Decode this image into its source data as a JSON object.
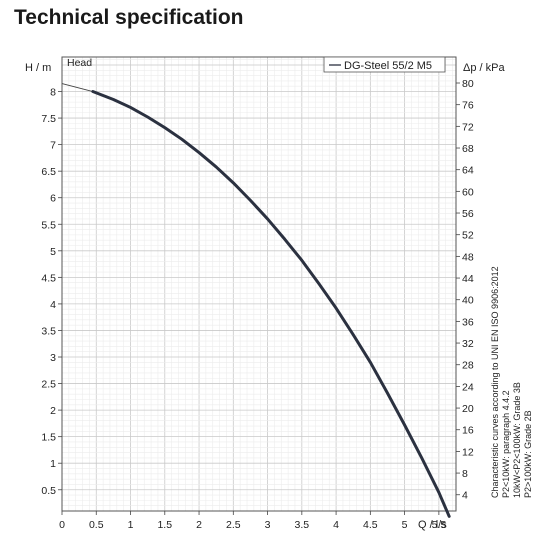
{
  "title": "Technical specification",
  "chart_data": {
    "type": "line",
    "ylabel_left": "H / m",
    "ylabel_right": "Δp / kPa",
    "xlabel": "Q / l/s",
    "head_label": "Head",
    "xlim": [
      0,
      5.75
    ],
    "ylim": [
      0.1,
      8.65
    ],
    "right_ylim": [
      1,
      84.8
    ],
    "grid": true,
    "legend_position": "top-right",
    "x_ticks": [
      "0",
      "0.5",
      "1",
      "1.5",
      "2",
      "2.5",
      "3",
      "3.5",
      "4",
      "4.5",
      "5",
      "5.5"
    ],
    "x_tick_values": [
      0,
      0.5,
      1,
      1.5,
      2,
      2.5,
      3,
      3.5,
      4,
      4.5,
      5,
      5.5
    ],
    "y_ticks": [
      "0.5",
      "1",
      "1.5",
      "2",
      "2.5",
      "3",
      "3.5",
      "4",
      "4.5",
      "5",
      "5.5",
      "6",
      "6.5",
      "7",
      "7.5",
      "8"
    ],
    "y_tick_values": [
      0.5,
      1,
      1.5,
      2,
      2.5,
      3,
      3.5,
      4,
      4.5,
      5,
      5.5,
      6,
      6.5,
      7,
      7.5,
      8
    ],
    "right_ticks": [
      "4",
      "8",
      "12",
      "16",
      "20",
      "24",
      "28",
      "32",
      "36",
      "40",
      "44",
      "48",
      "52",
      "56",
      "60",
      "64",
      "68",
      "72",
      "76",
      "80"
    ],
    "right_tick_values": [
      4,
      8,
      12,
      16,
      20,
      24,
      28,
      32,
      36,
      40,
      44,
      48,
      52,
      56,
      60,
      64,
      68,
      72,
      76,
      80
    ],
    "series": [
      {
        "name": "DG-Steel 55/2 M5",
        "color": "#2b3140",
        "x": [
          0.45,
          0.75,
          1.0,
          1.25,
          1.5,
          1.75,
          2.0,
          2.25,
          2.5,
          2.75,
          3.0,
          3.25,
          3.5,
          3.75,
          4.0,
          4.25,
          4.5,
          4.75,
          5.0,
          5.25,
          5.5,
          5.65
        ],
        "y": [
          8.0,
          7.85,
          7.7,
          7.52,
          7.32,
          7.1,
          6.85,
          6.58,
          6.28,
          5.95,
          5.6,
          5.22,
          4.82,
          4.38,
          3.92,
          3.42,
          2.9,
          2.32,
          1.72,
          1.1,
          0.45,
          0.0
        ]
      }
    ],
    "extrapolation": {
      "x": [
        0.0,
        0.45
      ],
      "y": [
        8.15,
        8.0
      ]
    },
    "notes": [
      "Characteristic curves according to UNI EN ISO 9906:2012",
      "P2<10kW: paragraph 4.4.2",
      "10kW<P2<100kW: Grade 3B",
      "P2>100kW: Grade 2B"
    ]
  }
}
